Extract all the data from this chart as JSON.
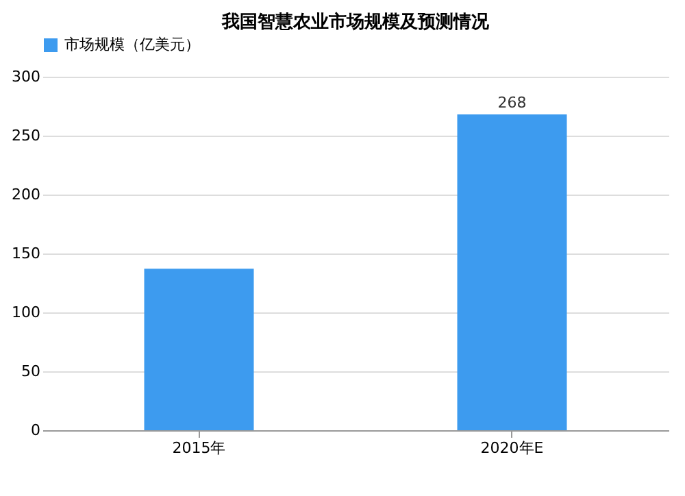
{
  "chart_data": {
    "type": "bar",
    "title": "我国智慧农业市场规模及预测情况",
    "categories": [
      "2015年",
      "2020年E"
    ],
    "series": [
      {
        "name": "市场规模（亿美元）",
        "color": "#3d9bef",
        "values": [
          137,
          268
        ],
        "value_labels": [
          null,
          "268"
        ]
      }
    ],
    "ylim": [
      0,
      300
    ],
    "yticks": [
      0,
      50,
      100,
      150,
      200,
      250,
      300
    ],
    "grid": "y",
    "legend": "top"
  }
}
